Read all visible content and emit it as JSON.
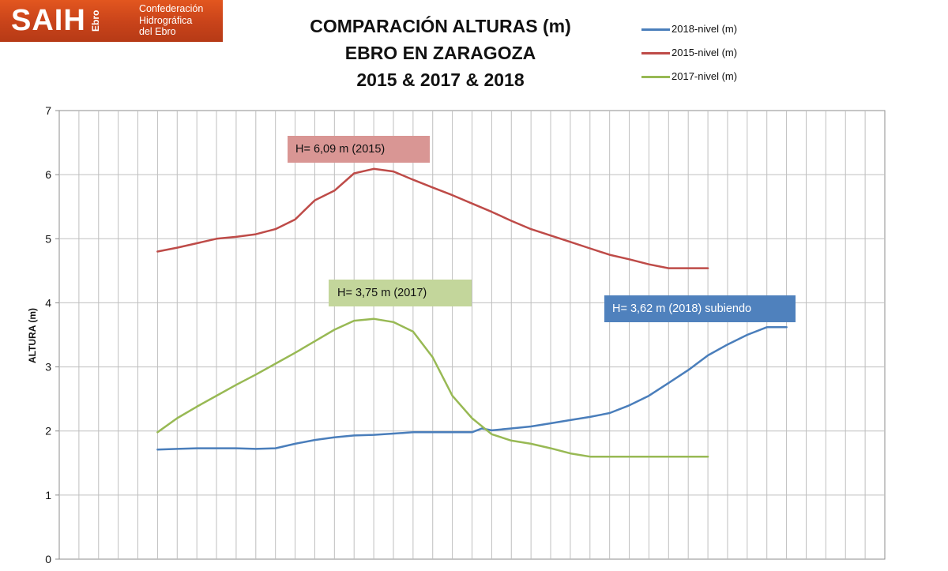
{
  "logo": {
    "main": "SAIH",
    "sub": "Ebro",
    "lines": [
      "Confederación",
      "Hidrográfica",
      "del Ebro"
    ]
  },
  "chart_data": {
    "type": "line",
    "title": [
      "COMPARACIÓN ALTURAS (m)",
      "EBRO EN ZARAGOZA",
      "2015 & 2017 & 2018"
    ],
    "xlabel": "",
    "ylabel": "ALTURA (m)",
    "ylim": [
      0,
      7
    ],
    "yticks": [
      "0",
      "1",
      "2",
      "3",
      "4",
      "5",
      "6",
      "7"
    ],
    "xlim": [
      0,
      42
    ],
    "grid": true,
    "legend_position": "top-right",
    "series": [
      {
        "name": "2018-nivel (m)",
        "color": "#4a7ebb",
        "x": [
          5,
          6,
          7,
          8,
          9,
          10,
          11,
          12,
          13,
          14,
          15,
          16,
          17,
          18,
          19,
          20,
          21,
          21.5,
          22,
          23,
          24,
          25,
          26,
          27,
          28,
          29,
          30,
          31,
          32,
          33,
          34,
          35,
          36,
          37
        ],
        "y": [
          1.71,
          1.72,
          1.73,
          1.73,
          1.73,
          1.72,
          1.73,
          1.8,
          1.86,
          1.9,
          1.93,
          1.94,
          1.96,
          1.98,
          1.98,
          1.98,
          1.98,
          2.04,
          2.01,
          2.04,
          2.07,
          2.12,
          2.17,
          2.22,
          2.28,
          2.4,
          2.55,
          2.75,
          2.95,
          3.18,
          3.35,
          3.5,
          3.62,
          3.62
        ]
      },
      {
        "name": "2015-nivel (m)",
        "color": "#be4b48",
        "x": [
          5,
          6,
          7,
          8,
          9,
          10,
          11,
          12,
          13,
          14,
          15,
          16,
          17,
          18,
          19,
          20,
          21,
          22,
          23,
          24,
          25,
          26,
          27,
          28,
          29,
          30,
          31,
          32,
          33
        ],
        "y": [
          4.8,
          4.86,
          4.93,
          5.0,
          5.03,
          5.07,
          5.15,
          5.3,
          5.6,
          5.75,
          6.02,
          6.09,
          6.05,
          5.92,
          5.8,
          5.68,
          5.55,
          5.42,
          5.28,
          5.15,
          5.05,
          4.95,
          4.85,
          4.75,
          4.68,
          4.6,
          4.54,
          4.54,
          4.54
        ]
      },
      {
        "name": "2017-nivel (m)",
        "color": "#98b954",
        "x": [
          5,
          6,
          7,
          8,
          9,
          10,
          11,
          12,
          13,
          14,
          15,
          16,
          17,
          18,
          19,
          20,
          21,
          22,
          23,
          24,
          25,
          26,
          27,
          28,
          29,
          30,
          31,
          32,
          33
        ],
        "y": [
          1.98,
          2.2,
          2.38,
          2.55,
          2.72,
          2.88,
          3.05,
          3.22,
          3.4,
          3.58,
          3.72,
          3.75,
          3.7,
          3.55,
          3.15,
          2.55,
          2.2,
          1.95,
          1.85,
          1.8,
          1.73,
          1.65,
          1.6,
          1.6,
          1.6,
          1.6,
          1.6,
          1.6,
          1.6
        ]
      }
    ],
    "annotations": [
      {
        "text": "H= 6,09 m (2015)",
        "bg": "#d99694"
      },
      {
        "text": "H= 3,75 m (2017)",
        "bg": "#c3d69b"
      },
      {
        "text": "H= 3,62 m (2018)  subiendo",
        "bg": "#4f81bd",
        "color": "#ffffff"
      }
    ]
  }
}
